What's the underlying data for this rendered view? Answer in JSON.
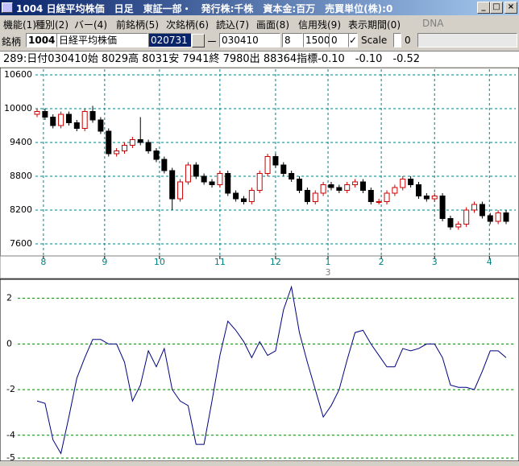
{
  "window": {
    "title": "1004 日経平均株価　日足　東証一部・　発行株:千株　資本金:百万　売買単位(株):0"
  },
  "menu": [
    "機能(1)",
    "種別(2)",
    "バー(4)",
    "前銘柄(5)",
    "次銘柄(6)",
    "読込(7)",
    "画面(8)",
    "信用残(9)",
    "表示期間(0)",
    "DNA"
  ],
  "toolbar": {
    "code_label": "銘柄",
    "code": "1004",
    "name": "日経平均株価",
    "from": "020731",
    "separator": "ー",
    "to": "030410",
    "bar_width": "8",
    "count": "1500",
    "offset": "0",
    "scale_label": "Scale",
    "scale_value": "0"
  },
  "info_line": "289:日付030410始 8029高 8031安 7941終 7980出 88364指標-0.10　-0.10　-0.52",
  "chart_data": [
    {
      "type": "candlestick",
      "open": [
        9900,
        9950,
        9850,
        9700,
        9900,
        9750,
        9650,
        9950,
        9800,
        9600,
        9200,
        9250,
        9350,
        9450,
        9400,
        9250,
        9100,
        8900,
        8400,
        8700,
        9000,
        8800,
        8700,
        8650,
        8850,
        8500,
        8400,
        8350,
        8550,
        8850,
        9150,
        9000,
        8850,
        8750,
        8550,
        8350,
        8500,
        8650,
        8600,
        8550,
        8650,
        8700,
        8550,
        8350,
        8350,
        8500,
        8600,
        8750,
        8650,
        8450,
        8400,
        8450,
        8050,
        7900,
        7950,
        8200,
        8300,
        8100,
        8000,
        8150
      ],
      "high": [
        10000,
        10000,
        9900,
        9950,
        9950,
        9800,
        10000,
        10050,
        9850,
        9650,
        9300,
        9400,
        9500,
        9850,
        9450,
        9300,
        9150,
        8950,
        8750,
        9050,
        9050,
        8850,
        8750,
        8900,
        8900,
        8550,
        8450,
        8600,
        8900,
        9200,
        9200,
        9050,
        8900,
        8800,
        8600,
        8550,
        8700,
        8700,
        8650,
        8700,
        8750,
        8750,
        8600,
        8400,
        8550,
        8650,
        8800,
        8800,
        8700,
        8500,
        8500,
        8500,
        8100,
        8000,
        8250,
        8350,
        8350,
        8150,
        8200,
        8200
      ],
      "low": [
        9850,
        9800,
        9650,
        9650,
        9700,
        9600,
        9600,
        9750,
        9550,
        9150,
        9150,
        9200,
        9300,
        9350,
        9200,
        9050,
        8850,
        8200,
        8350,
        8650,
        8750,
        8650,
        8600,
        8600,
        8450,
        8350,
        8300,
        8300,
        8500,
        8800,
        8950,
        8800,
        8700,
        8500,
        8300,
        8300,
        8450,
        8550,
        8500,
        8500,
        8600,
        8500,
        8300,
        8300,
        8300,
        8450,
        8550,
        8600,
        8400,
        8350,
        8350,
        8000,
        7850,
        7850,
        7900,
        8150,
        8050,
        7950,
        7950,
        7950
      ],
      "close": [
        9950,
        9850,
        9700,
        9900,
        9750,
        9650,
        9950,
        9800,
        9600,
        9200,
        9250,
        9350,
        9450,
        9400,
        9250,
        9100,
        8900,
        8400,
        8700,
        9000,
        8800,
        8700,
        8650,
        8850,
        8500,
        8400,
        8350,
        8550,
        8850,
        9150,
        9000,
        8850,
        8750,
        8550,
        8350,
        8500,
        8650,
        8600,
        8550,
        8650,
        8700,
        8550,
        8350,
        8350,
        8500,
        8600,
        8750,
        8650,
        8450,
        8400,
        8450,
        8050,
        7900,
        7950,
        8200,
        8300,
        8100,
        8000,
        8150,
        8000
      ],
      "up_color": "#cc0000",
      "down_color": "#000000",
      "grid_color": "#008080",
      "xlim": [
        0,
        59
      ],
      "xticks": [
        {
          "value": 0.8,
          "label": "8"
        },
        {
          "value": 8.5,
          "label": "9"
        },
        {
          "value": 15.4,
          "label": "10"
        },
        {
          "value": 23,
          "label": "11"
        },
        {
          "value": 30,
          "label": "12"
        },
        {
          "value": 36.6,
          "label": "1"
        },
        {
          "value": 43.3,
          "label": "2"
        },
        {
          "value": 50,
          "label": "3"
        },
        {
          "value": 56.9,
          "label": "4"
        }
      ],
      "year_label": "3",
      "ylim": [
        7400,
        10700
      ],
      "yticks": [
        7600,
        8200,
        8800,
        9400,
        10000,
        10600
      ],
      "grid": true
    },
    {
      "type": "line",
      "values": [
        -2.5,
        -2.6,
        -4.2,
        -4.8,
        -3.2,
        -1.5,
        -0.6,
        0.2,
        0.2,
        0.0,
        0.0,
        -0.8,
        -2.5,
        -1.8,
        -0.3,
        -1.0,
        -0.2,
        -2.0,
        -2.5,
        -2.7,
        -4.4,
        -4.4,
        -2.5,
        -0.5,
        1.0,
        0.6,
        0.1,
        -0.6,
        0.1,
        -0.5,
        -0.3,
        1.5,
        2.5,
        0.5,
        -0.8,
        -2.0,
        -3.2,
        -2.7,
        -2.0,
        -0.7,
        0.5,
        0.6,
        0.0,
        -0.5,
        -1.0,
        -1.0,
        -0.2,
        -0.3,
        -0.2,
        0.0,
        0.0,
        -0.6,
        -1.8,
        -1.9,
        -1.9,
        -2.0,
        -1.2,
        -0.3,
        -0.3,
        -0.6
      ],
      "color": "#000080",
      "grid_color": "#008000",
      "xlim": [
        0,
        59
      ],
      "ylim": [
        -5.1,
        2.8
      ],
      "yticks": [
        2,
        0,
        -2,
        -4,
        -5
      ],
      "grid": true
    }
  ]
}
